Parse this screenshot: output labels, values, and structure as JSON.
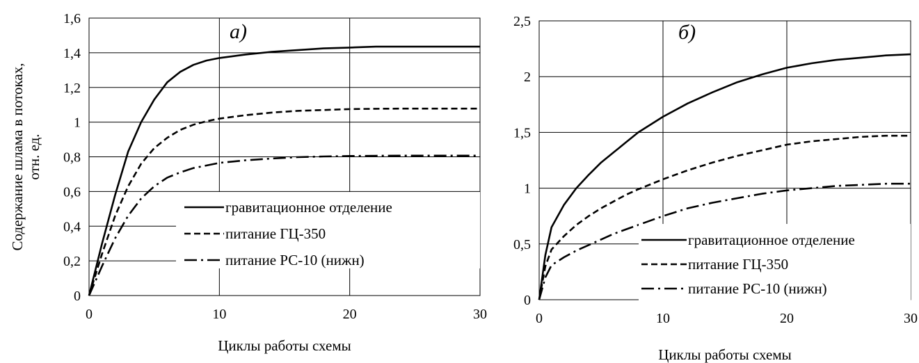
{
  "chart_data": [
    {
      "type": "line",
      "panel_label": "а)",
      "xlabel": "Циклы работы схемы",
      "ylabel": "Содержание шлама в потоках, отн. ед.",
      "xlim": [
        0,
        30
      ],
      "ylim": [
        0,
        1.6
      ],
      "x_ticks": [
        "0",
        "10",
        "20",
        "30"
      ],
      "y_ticks": [
        "0",
        "0,2",
        "0,4",
        "0,6",
        "0,8",
        "1",
        "1,2",
        "1,4",
        "1,6"
      ],
      "grid": true,
      "legend_position": "bottom-right",
      "series": [
        {
          "name": "гравитационное отделение",
          "style": "solid",
          "x": [
            0,
            1,
            2,
            3,
            4,
            5,
            6,
            7,
            8,
            9,
            10,
            12,
            14,
            16,
            18,
            20,
            22,
            24,
            26,
            28,
            30
          ],
          "y": [
            0,
            0.3,
            0.58,
            0.83,
            1.0,
            1.13,
            1.23,
            1.29,
            1.33,
            1.355,
            1.37,
            1.39,
            1.405,
            1.415,
            1.425,
            1.43,
            1.435,
            1.435,
            1.435,
            1.435,
            1.435
          ]
        },
        {
          "name": "питание ГЦ-350",
          "style": "dash",
          "x": [
            0,
            1,
            2,
            3,
            4,
            5,
            6,
            7,
            8,
            9,
            10,
            12,
            14,
            16,
            18,
            20,
            22,
            24,
            26,
            28,
            30
          ],
          "y": [
            0,
            0.24,
            0.46,
            0.63,
            0.76,
            0.85,
            0.91,
            0.955,
            0.985,
            1.005,
            1.02,
            1.04,
            1.055,
            1.065,
            1.07,
            1.075,
            1.077,
            1.078,
            1.078,
            1.078,
            1.078
          ]
        },
        {
          "name": "питание РС-10 (нижн)",
          "style": "dashdot",
          "x": [
            0,
            1,
            2,
            3,
            4,
            5,
            6,
            7,
            8,
            9,
            10,
            12,
            14,
            16,
            18,
            20,
            22,
            24,
            26,
            28,
            30
          ],
          "y": [
            0,
            0.17,
            0.33,
            0.46,
            0.56,
            0.63,
            0.68,
            0.71,
            0.735,
            0.75,
            0.765,
            0.78,
            0.79,
            0.798,
            0.802,
            0.805,
            0.806,
            0.807,
            0.807,
            0.807,
            0.807
          ]
        }
      ]
    },
    {
      "type": "line",
      "panel_label": "б)",
      "xlabel": "Циклы работы схемы",
      "ylabel": "",
      "xlim": [
        0,
        30
      ],
      "ylim": [
        0,
        2.5
      ],
      "x_ticks": [
        "0",
        "10",
        "20",
        "30"
      ],
      "y_ticks": [
        "0",
        "0,5",
        "1",
        "1,5",
        "2",
        "2,5"
      ],
      "grid": true,
      "legend_position": "bottom-right",
      "series": [
        {
          "name": "гравитационное отделение",
          "style": "solid",
          "x": [
            0,
            0.5,
            1,
            2,
            3,
            4,
            5,
            6,
            7,
            8,
            10,
            12,
            14,
            16,
            18,
            20,
            22,
            24,
            26,
            28,
            30
          ],
          "y": [
            0,
            0.4,
            0.65,
            0.85,
            1.0,
            1.12,
            1.23,
            1.32,
            1.41,
            1.5,
            1.64,
            1.76,
            1.86,
            1.95,
            2.02,
            2.08,
            2.12,
            2.15,
            2.17,
            2.19,
            2.2
          ]
        },
        {
          "name": "питание ГЦ-350",
          "style": "dash",
          "x": [
            0,
            0.5,
            1,
            2,
            3,
            4,
            5,
            6,
            7,
            8,
            10,
            12,
            14,
            16,
            18,
            20,
            22,
            24,
            26,
            28,
            30
          ],
          "y": [
            0,
            0.3,
            0.45,
            0.57,
            0.67,
            0.75,
            0.82,
            0.88,
            0.94,
            0.99,
            1.08,
            1.16,
            1.23,
            1.29,
            1.34,
            1.39,
            1.42,
            1.44,
            1.46,
            1.47,
            1.47
          ]
        },
        {
          "name": "питание РС-10 (нижн)",
          "style": "dashdot",
          "x": [
            0,
            0.5,
            1,
            2,
            3,
            4,
            5,
            6,
            7,
            8,
            10,
            12,
            14,
            16,
            18,
            20,
            22,
            24,
            26,
            28,
            30
          ],
          "y": [
            0,
            0.2,
            0.31,
            0.38,
            0.44,
            0.49,
            0.54,
            0.59,
            0.63,
            0.67,
            0.75,
            0.82,
            0.87,
            0.91,
            0.95,
            0.98,
            1.0,
            1.02,
            1.03,
            1.04,
            1.04
          ]
        }
      ]
    }
  ]
}
